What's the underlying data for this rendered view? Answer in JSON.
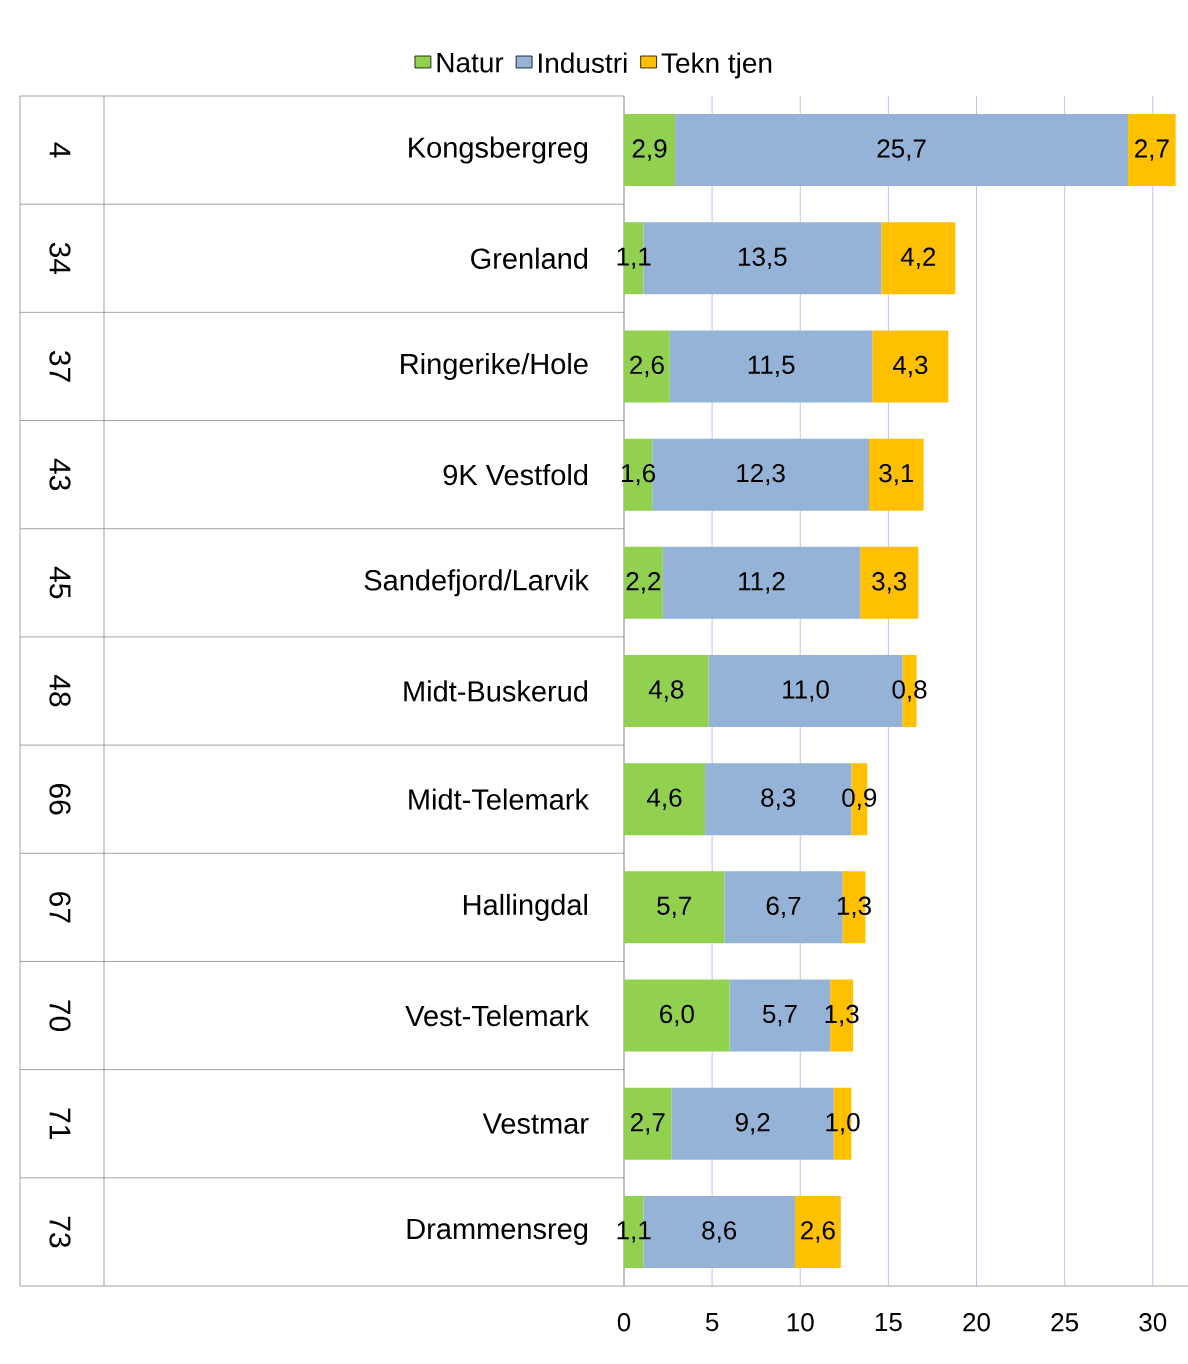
{
  "chart_data": {
    "type": "bar",
    "orientation": "horizontal",
    "stacked": true,
    "categories": [
      "Kongsbergreg",
      "Grenland",
      "Ringerike/Hole",
      "9K Vestfold",
      "Sandefjord/Larvik",
      "Midt-Buskerud",
      "Midt-Telemark",
      "Hallingdal",
      "Vest-Telemark",
      "Vestmar",
      "Drammensreg"
    ],
    "series": [
      {
        "name": "Natur",
        "color": "#92d050",
        "values": [
          2.9,
          1.1,
          2.6,
          1.6,
          2.2,
          4.8,
          4.6,
          5.7,
          6.0,
          2.7,
          1.1
        ],
        "value_labels": [
          "2,9",
          "1,1",
          "2,6",
          "1,6",
          "2,2",
          "4,8",
          "4,6",
          "5,7",
          "6,0",
          "2,7",
          "1,1"
        ]
      },
      {
        "name": "Industri",
        "color": "#95b3d7",
        "values": [
          25.7,
          13.5,
          11.5,
          12.3,
          11.2,
          11.0,
          8.3,
          6.7,
          5.7,
          9.2,
          8.6
        ],
        "value_labels": [
          "25,7",
          "13,5",
          "11,5",
          "12,3",
          "11,2",
          "11,0",
          "8,3",
          "6,7",
          "5,7",
          "9,2",
          "8,6"
        ]
      },
      {
        "name": "Tekn tjen",
        "color": "#ffc000",
        "values": [
          2.7,
          4.2,
          4.3,
          3.1,
          3.3,
          0.8,
          0.9,
          1.3,
          1.3,
          1.0,
          2.6
        ],
        "value_labels": [
          "2,7",
          "4,2",
          "4,3",
          "3,1",
          "3,3",
          "0,8",
          "0,9",
          "1,3",
          "1,3",
          "1,0",
          "2,6"
        ]
      }
    ],
    "annotations": [
      "4",
      "34",
      "37",
      "43",
      "45",
      "48",
      "66",
      "67",
      "70",
      "71",
      "73"
    ],
    "xlim": [
      0,
      32
    ],
    "xticks": [
      0,
      5,
      10,
      15,
      20,
      25,
      30
    ],
    "grid": "x",
    "legend": "top"
  }
}
